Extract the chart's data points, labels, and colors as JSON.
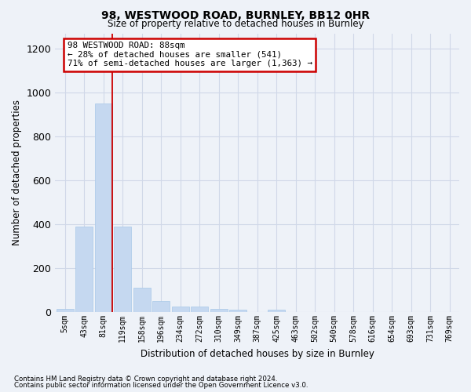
{
  "title1": "98, WESTWOOD ROAD, BURNLEY, BB12 0HR",
  "title2": "Size of property relative to detached houses in Burnley",
  "xlabel": "Distribution of detached houses by size in Burnley",
  "ylabel": "Number of detached properties",
  "footnote1": "Contains HM Land Registry data © Crown copyright and database right 2024.",
  "footnote2": "Contains public sector information licensed under the Open Government Licence v3.0.",
  "categories": [
    "5sqm",
    "43sqm",
    "81sqm",
    "119sqm",
    "158sqm",
    "196sqm",
    "234sqm",
    "272sqm",
    "310sqm",
    "349sqm",
    "387sqm",
    "425sqm",
    "463sqm",
    "502sqm",
    "540sqm",
    "578sqm",
    "616sqm",
    "654sqm",
    "693sqm",
    "731sqm",
    "769sqm"
  ],
  "values": [
    15,
    390,
    950,
    390,
    110,
    50,
    25,
    25,
    15,
    10,
    0,
    10,
    0,
    0,
    0,
    0,
    0,
    0,
    0,
    0,
    0
  ],
  "bar_color": "#c5d8f0",
  "bar_edge_color": "#a8c8e8",
  "grid_color": "#d0d8e8",
  "background_color": "#eef2f8",
  "red_line_bar_index": 2,
  "annotation_text": "98 WESTWOOD ROAD: 88sqm\n← 28% of detached houses are smaller (541)\n71% of semi-detached houses are larger (1,363) →",
  "annotation_box_color": "#ffffff",
  "annotation_border_color": "#cc0000",
  "ylim": [
    0,
    1270
  ],
  "yticks": [
    0,
    200,
    400,
    600,
    800,
    1000,
    1200
  ]
}
